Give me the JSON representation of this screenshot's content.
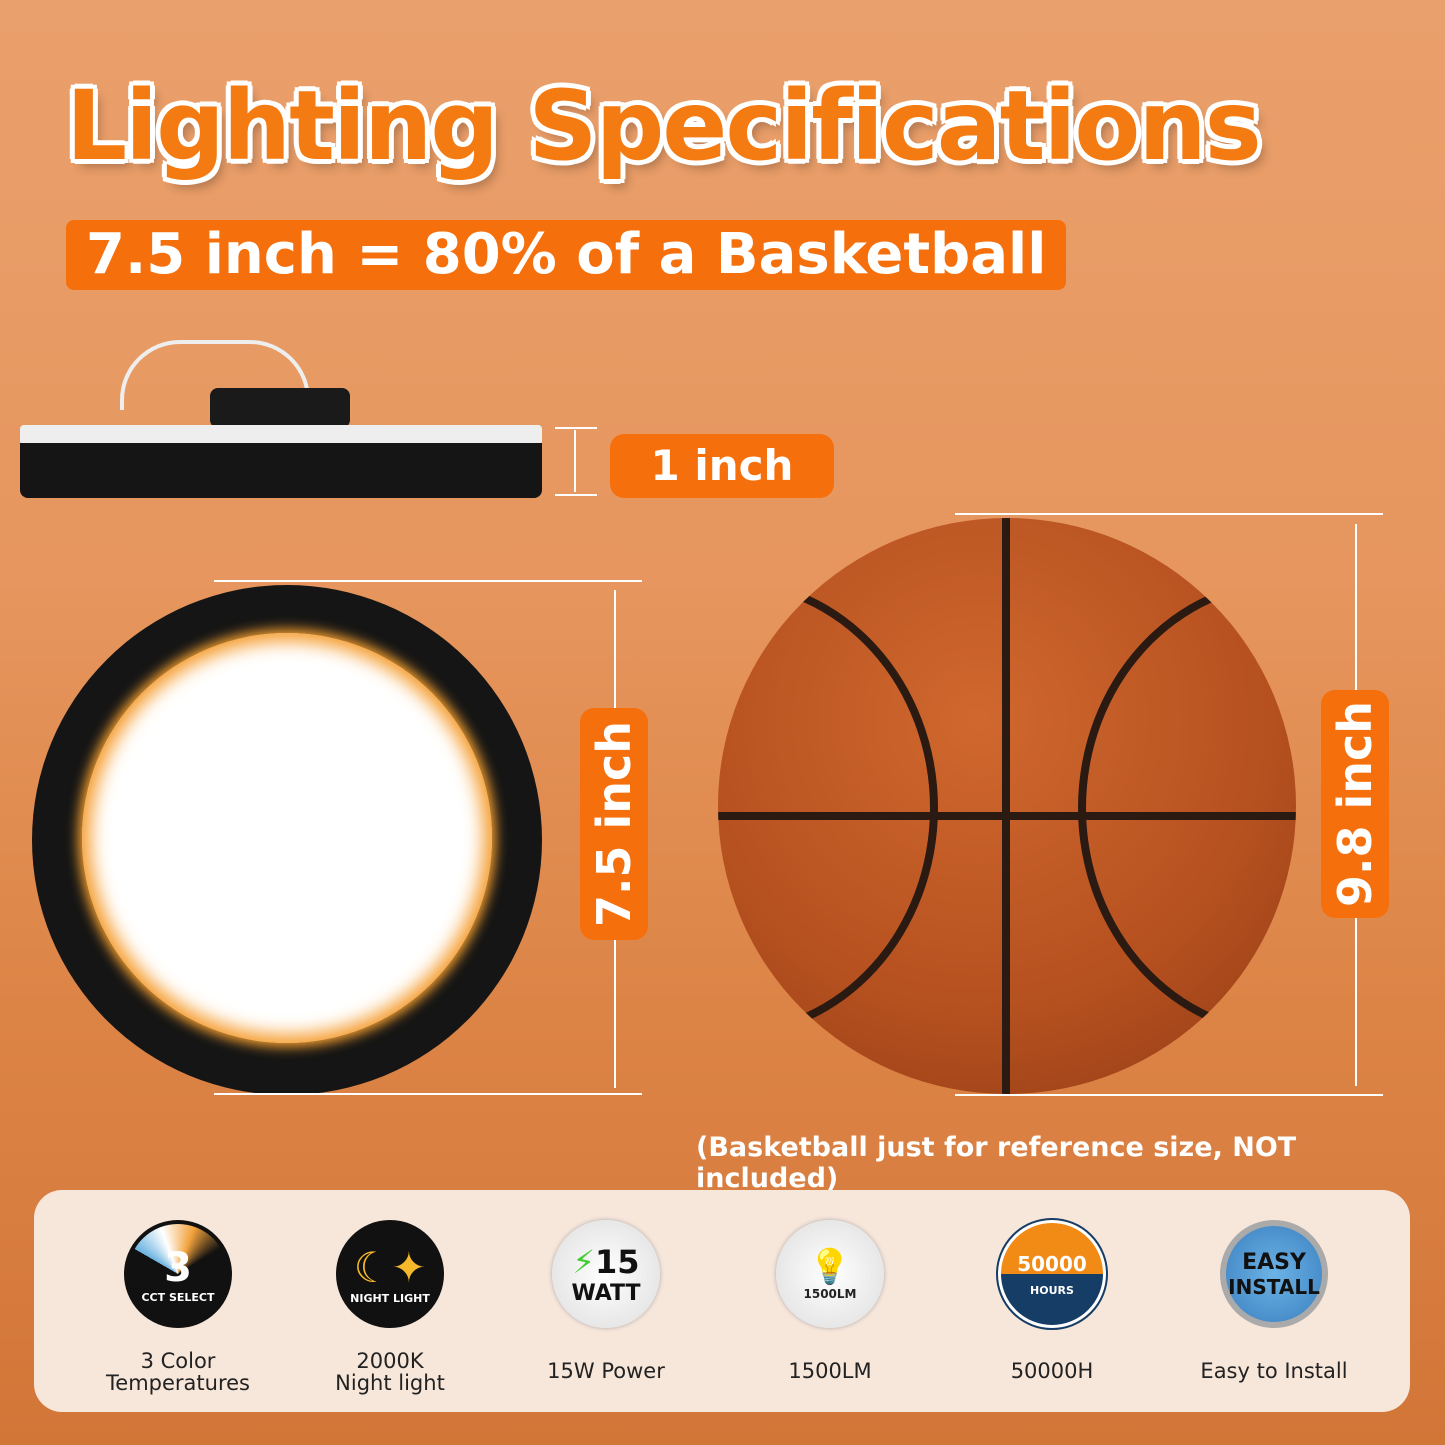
{
  "title": "Lighting Specifications",
  "subtitle": "7.5 inch = 80% of a Basketball",
  "dimensions": {
    "height": "1 inch",
    "diameter": "7.5 inch",
    "basketball": "9.8 inch"
  },
  "note": "(Basketball just for reference size, NOT included)",
  "accent_color": "#f5700c",
  "features": [
    {
      "icon": "cct-select-icon",
      "icon_text": "3",
      "icon_sub": "CCT SELECT",
      "label1": "3 Color",
      "label2": "Temperatures"
    },
    {
      "icon": "night-light-icon",
      "icon_text": "NIGHT LIGHT",
      "label1": "2000K",
      "label2": "Night light"
    },
    {
      "icon": "watt-icon",
      "icon_text": "15",
      "icon_sub": "WATT",
      "label1": "15W Power"
    },
    {
      "icon": "bulb-icon",
      "icon_text": "1500LM",
      "label1": "1500LM"
    },
    {
      "icon": "hours-icon",
      "icon_text": "50000",
      "icon_sub": "HOURS",
      "label1": "50000H"
    },
    {
      "icon": "easy-install-icon",
      "icon_text": "EASY",
      "icon_sub": "INSTALL",
      "label1": "Easy to Install"
    }
  ]
}
